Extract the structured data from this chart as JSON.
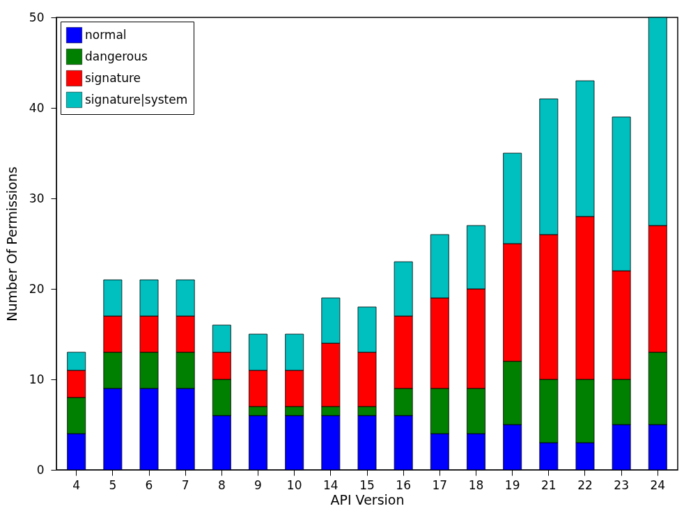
{
  "chart_data": {
    "type": "bar",
    "stacked": true,
    "xlabel": "API Version",
    "ylabel": "Number Of Permissions",
    "categories": [
      "4",
      "5",
      "6",
      "7",
      "8",
      "9",
      "10",
      "14",
      "15",
      "16",
      "17",
      "18",
      "19",
      "21",
      "22",
      "23",
      "24"
    ],
    "series": [
      {
        "name": "normal",
        "color": "#0000ff",
        "values": [
          4,
          9,
          9,
          9,
          6,
          6,
          6,
          6,
          6,
          6,
          4,
          4,
          5,
          3,
          3,
          5,
          5
        ]
      },
      {
        "name": "dangerous",
        "color": "#008000",
        "values": [
          4,
          4,
          4,
          4,
          4,
          1,
          1,
          1,
          1,
          3,
          5,
          5,
          7,
          7,
          7,
          5,
          8
        ]
      },
      {
        "name": "signature",
        "color": "#ff0000",
        "values": [
          3,
          4,
          4,
          4,
          3,
          4,
          4,
          7,
          6,
          8,
          10,
          11,
          13,
          16,
          18,
          12,
          14
        ]
      },
      {
        "name": "signature|system",
        "color": "#00bfbf",
        "values": [
          2,
          4,
          4,
          4,
          3,
          4,
          4,
          5,
          5,
          6,
          7,
          7,
          10,
          15,
          15,
          17,
          23
        ]
      }
    ],
    "ylim": [
      0,
      50
    ],
    "yticks": [
      0,
      10,
      20,
      30,
      40,
      50
    ],
    "grid": false,
    "legend": "top left"
  }
}
